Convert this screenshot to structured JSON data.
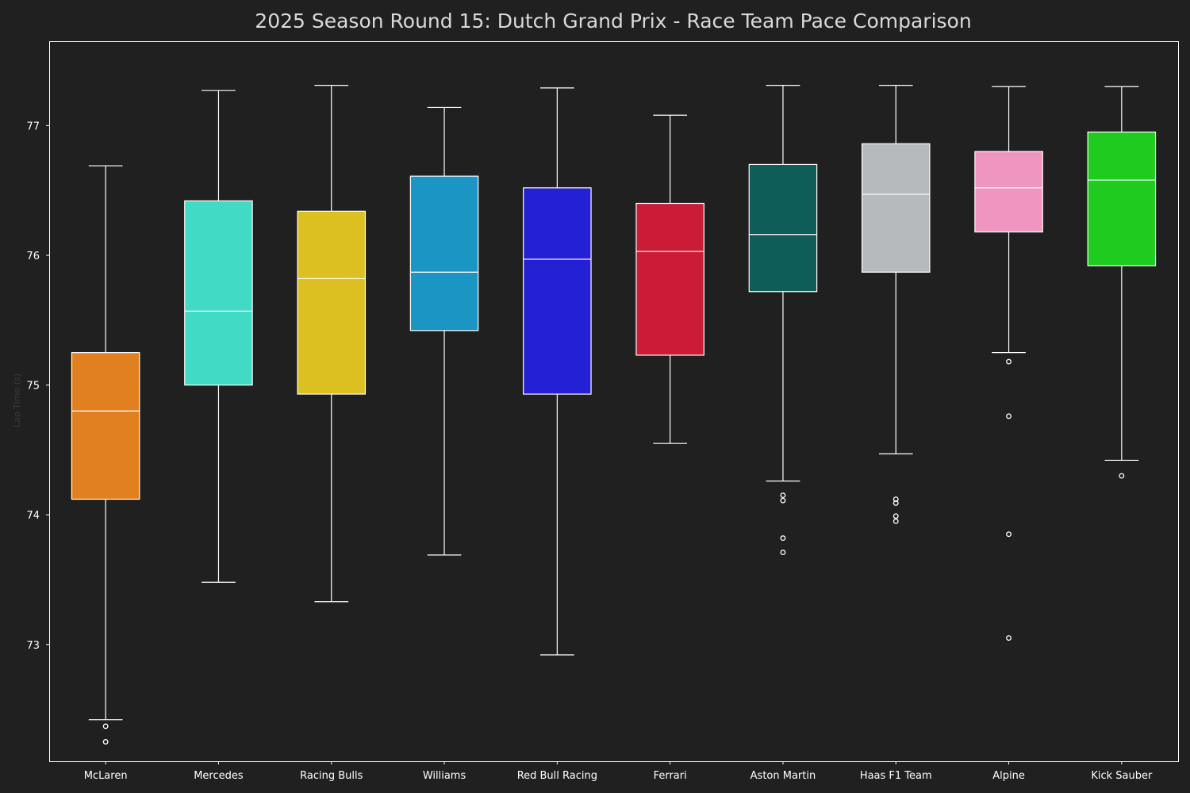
{
  "chart_data": {
    "type": "box",
    "title": "2025 Season Round 15: Dutch Grand Prix - Race Team Pace Comparison",
    "ylabel": "Lap Time (s)",
    "xlabel": "",
    "ylim": [
      72.1,
      77.65
    ],
    "yticks": [
      73,
      74,
      75,
      76,
      77
    ],
    "grid": false,
    "categories": [
      "McLaren",
      "Mercedes",
      "Racing Bulls",
      "Williams",
      "Red Bull Racing",
      "Ferrari",
      "Aston Martin",
      "Haas F1 Team",
      "Alpine",
      "Kick Sauber"
    ],
    "boxes": [
      {
        "team": "McLaren",
        "color": "#e08020",
        "whisker_low": 72.42,
        "q1": 74.12,
        "median": 74.8,
        "q3": 75.25,
        "whisker_high": 76.69,
        "outliers": [
          72.37,
          72.25
        ]
      },
      {
        "team": "Mercedes",
        "color": "#40dac5",
        "whisker_low": 73.48,
        "q1": 75.0,
        "median": 75.57,
        "q3": 76.42,
        "whisker_high": 77.27,
        "outliers": []
      },
      {
        "team": "Racing Bulls",
        "color": "#dcc021",
        "whisker_low": 73.33,
        "q1": 74.93,
        "median": 75.82,
        "q3": 76.34,
        "whisker_high": 77.31,
        "outliers": []
      },
      {
        "team": "Williams",
        "color": "#1b96c4",
        "whisker_low": 73.69,
        "q1": 75.42,
        "median": 75.87,
        "q3": 76.61,
        "whisker_high": 77.14,
        "outliers": []
      },
      {
        "team": "Red Bull Racing",
        "color": "#2320d5",
        "whisker_low": 72.92,
        "q1": 74.93,
        "median": 75.97,
        "q3": 76.52,
        "whisker_high": 77.29,
        "outliers": []
      },
      {
        "team": "Ferrari",
        "color": "#cb1c37",
        "whisker_low": 74.55,
        "q1": 75.23,
        "median": 76.03,
        "q3": 76.4,
        "whisker_high": 77.08,
        "outliers": []
      },
      {
        "team": "Aston Martin",
        "color": "#0e5d58",
        "whisker_low": 74.26,
        "q1": 75.72,
        "median": 76.16,
        "q3": 76.7,
        "whisker_high": 77.31,
        "outliers": [
          74.15,
          74.11,
          73.82,
          73.71
        ]
      },
      {
        "team": "Haas F1 Team",
        "color": "#b7babd",
        "whisker_low": 74.47,
        "q1": 75.87,
        "median": 76.47,
        "q3": 76.86,
        "whisker_high": 77.31,
        "outliers": [
          74.12,
          74.09,
          73.99,
          73.95
        ]
      },
      {
        "team": "Alpine",
        "color": "#f095c0",
        "whisker_low": 75.25,
        "q1": 76.18,
        "median": 76.52,
        "q3": 76.8,
        "whisker_high": 77.3,
        "outliers": [
          75.18,
          74.76,
          73.85,
          73.05
        ]
      },
      {
        "team": "Kick Sauber",
        "color": "#1ecb1e",
        "whisker_low": 74.42,
        "q1": 75.92,
        "median": 76.58,
        "q3": 76.95,
        "whisker_high": 77.3,
        "outliers": [
          74.3
        ]
      }
    ],
    "colors": {
      "background": "#202020",
      "frame": "#ffffff",
      "box_edge": "#ffffff",
      "median": "#ffffff",
      "title": "#d9d9d9"
    }
  }
}
